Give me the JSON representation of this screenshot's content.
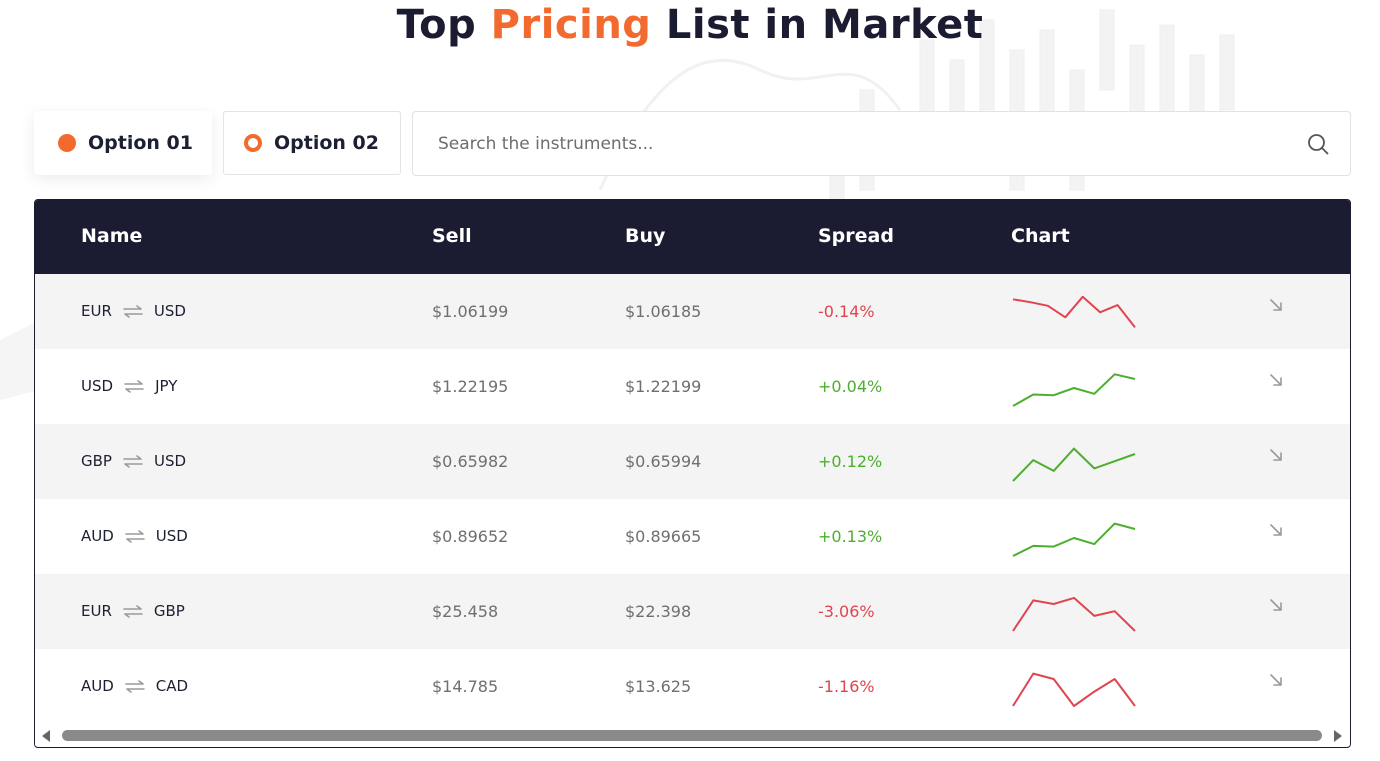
{
  "header": {
    "title_part1": "Top ",
    "title_accent": "Pricing",
    "title_part2": " List in Market"
  },
  "options": [
    {
      "label": "Option 01",
      "selected": true
    },
    {
      "label": "Option 02",
      "selected": false
    }
  ],
  "search": {
    "placeholder": "Search the instruments...",
    "value": ""
  },
  "table": {
    "columns": [
      "Name",
      "Sell",
      "Buy",
      "Spread",
      "Chart"
    ],
    "rows": [
      {
        "base": "EUR",
        "quote": "USD",
        "sell": "$1.06199",
        "buy": "$1.06185",
        "spread": "-0.14%",
        "trend": "down",
        "spark": [
          0.88,
          0.8,
          0.7,
          0.38,
          0.95,
          0.52,
          0.72,
          0.1
        ]
      },
      {
        "base": "USD",
        "quote": "JPY",
        "sell": "$1.22195",
        "buy": "$1.22199",
        "spread": "+0.04%",
        "trend": "up",
        "spark": [
          0.0,
          0.32,
          0.3,
          0.5,
          0.34,
          0.88,
          0.75
        ]
      },
      {
        "base": "GBP",
        "quote": "USD",
        "sell": "$0.65982",
        "buy": "$0.65994",
        "spread": "+0.12%",
        "trend": "up",
        "spark": [
          0.0,
          0.58,
          0.28,
          0.9,
          0.35,
          0.55,
          0.75
        ]
      },
      {
        "base": "AUD",
        "quote": "USD",
        "sell": "$0.89652",
        "buy": "$0.89665",
        "spread": "+0.13%",
        "trend": "up",
        "spark": [
          0.0,
          0.28,
          0.26,
          0.5,
          0.33,
          0.9,
          0.75
        ]
      },
      {
        "base": "EUR",
        "quote": "GBP",
        "sell": "$25.458",
        "buy": "$22.398",
        "spread": "-3.06%",
        "trend": "down",
        "spark": [
          0.0,
          0.85,
          0.75,
          0.92,
          0.42,
          0.55,
          0.0
        ]
      },
      {
        "base": "AUD",
        "quote": "CAD",
        "sell": "$14.785",
        "buy": "$13.625",
        "spread": "-1.16%",
        "trend": "down",
        "spark": [
          0.0,
          0.9,
          0.75,
          0.0,
          0.4,
          0.75,
          0.0
        ]
      }
    ]
  },
  "colors": {
    "accent": "#f26a2e",
    "header_bg": "#1b1c31",
    "negative": "#e0454f",
    "positive": "#4caf2e"
  },
  "icons": {
    "swap": "swap-arrows-icon",
    "row_action": "arrow-down-right-icon",
    "search": "search-icon"
  }
}
